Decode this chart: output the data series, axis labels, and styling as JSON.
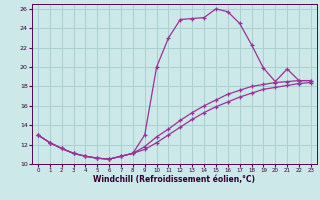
{
  "xlabel": "Windchill (Refroidissement éolien,°C)",
  "background_color": "#cce8e8",
  "grid_color": "#aad0d0",
  "line_color": "#993399",
  "xlim": [
    -0.5,
    23.5
  ],
  "ylim": [
    10,
    26.5
  ],
  "xticks": [
    0,
    1,
    2,
    3,
    4,
    5,
    6,
    7,
    8,
    9,
    10,
    11,
    12,
    13,
    14,
    15,
    16,
    17,
    18,
    19,
    20,
    21,
    22,
    23
  ],
  "yticks": [
    10,
    12,
    14,
    16,
    18,
    20,
    22,
    24,
    26
  ],
  "line1_x": [
    0,
    1,
    2,
    3,
    4,
    5,
    6,
    7,
    8,
    9,
    10,
    11,
    12,
    13,
    14,
    15,
    16,
    17,
    18,
    19,
    20,
    21,
    22,
    23
  ],
  "line1_y": [
    13.0,
    12.2,
    11.6,
    11.1,
    10.8,
    10.6,
    10.5,
    10.8,
    11.1,
    13.0,
    20.0,
    23.0,
    24.9,
    25.0,
    25.1,
    26.0,
    25.7,
    24.5,
    22.3,
    19.9,
    18.5,
    19.8,
    18.6,
    18.6
  ],
  "line2_x": [
    0,
    1,
    2,
    3,
    4,
    5,
    6,
    7,
    8,
    9,
    10,
    11,
    12,
    13,
    14,
    15,
    16,
    17,
    18,
    19,
    20,
    21,
    22,
    23
  ],
  "line2_y": [
    13.0,
    12.2,
    11.6,
    11.1,
    10.8,
    10.6,
    10.5,
    10.8,
    11.1,
    11.8,
    12.8,
    13.6,
    14.5,
    15.3,
    16.0,
    16.6,
    17.2,
    17.6,
    18.0,
    18.2,
    18.4,
    18.5,
    18.6,
    18.6
  ],
  "line3_x": [
    0,
    1,
    2,
    3,
    4,
    5,
    6,
    7,
    8,
    9,
    10,
    11,
    12,
    13,
    14,
    15,
    16,
    17,
    18,
    19,
    20,
    21,
    22,
    23
  ],
  "line3_y": [
    13.0,
    12.2,
    11.6,
    11.1,
    10.8,
    10.6,
    10.5,
    10.8,
    11.1,
    11.5,
    12.2,
    13.0,
    13.8,
    14.6,
    15.3,
    15.9,
    16.4,
    16.9,
    17.3,
    17.7,
    17.9,
    18.1,
    18.3,
    18.4
  ]
}
